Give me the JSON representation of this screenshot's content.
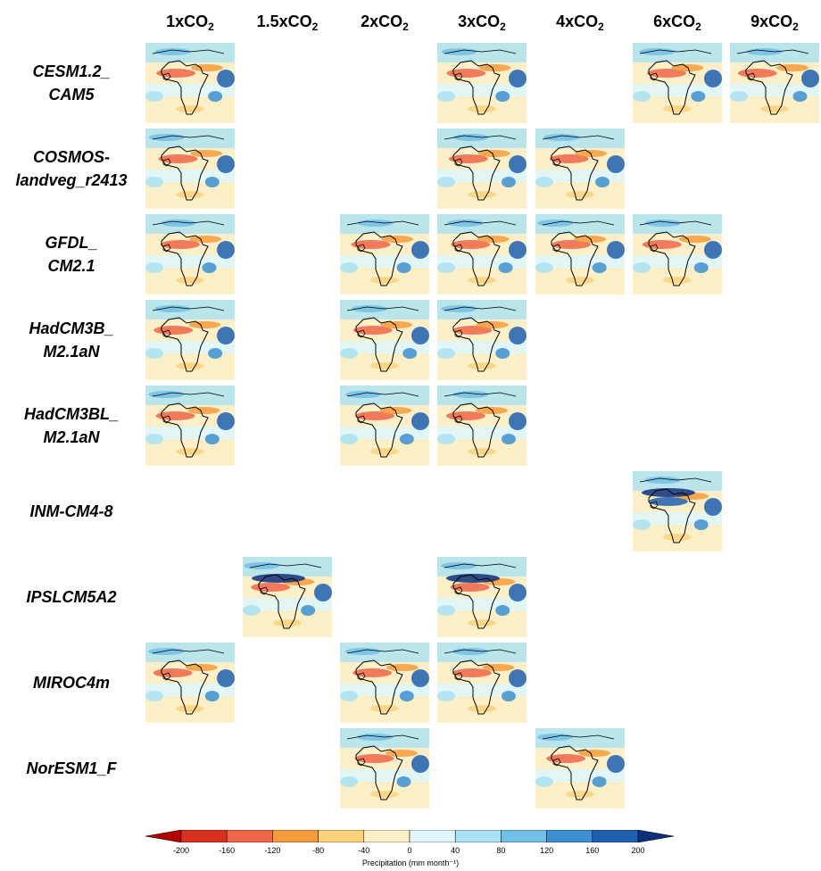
{
  "columns": [
    {
      "prefix": "1xCO",
      "sub": "2"
    },
    {
      "prefix": "1.5xCO",
      "sub": "2"
    },
    {
      "prefix": "2xCO",
      "sub": "2"
    },
    {
      "prefix": "3xCO",
      "sub": "2"
    },
    {
      "prefix": "4xCO",
      "sub": "2"
    },
    {
      "prefix": "6xCO",
      "sub": "2"
    },
    {
      "prefix": "9xCO",
      "sub": "2"
    }
  ],
  "models": [
    {
      "line1": "CESM1.2_",
      "line2": "CAM5",
      "panels": [
        0,
        3,
        5,
        6
      ]
    },
    {
      "line1": "COSMOS-",
      "line2": "landveg_r2413",
      "panels": [
        0,
        3,
        4
      ]
    },
    {
      "line1": "GFDL_",
      "line2": "CM2.1",
      "panels": [
        0,
        2,
        3,
        4,
        5
      ]
    },
    {
      "line1": "HadCM3B_",
      "line2": "M2.1aN",
      "panels": [
        0,
        2,
        3
      ]
    },
    {
      "line1": "HadCM3BL_",
      "line2": "M2.1aN",
      "panels": [
        0,
        2,
        3
      ]
    },
    {
      "line1": "INM-CM4-8",
      "line2": "",
      "panels": [
        5
      ]
    },
    {
      "line1": "IPSLCM5A2",
      "line2": "",
      "panels": [
        1,
        3
      ]
    },
    {
      "line1": "MIROC4m",
      "line2": "",
      "panels": [
        0,
        2,
        3
      ]
    },
    {
      "line1": "NorESM1_F",
      "line2": "",
      "panels": [
        2,
        4
      ]
    }
  ],
  "colorbar": {
    "title": "Precipitation (mm month⁻¹)",
    "ticks": [
      "-200",
      "-160",
      "-120",
      "-80",
      "-40",
      "0",
      "40",
      "80",
      "120",
      "160",
      "200"
    ],
    "colors": [
      "#b30000",
      "#d7301f",
      "#ef6548",
      "#f59c3c",
      "#fbd37a",
      "#fdf0c8",
      "#e0f6fb",
      "#a9e2f2",
      "#72c0e8",
      "#3d8fd1",
      "#1f5fb0",
      "#0c2f7a"
    ]
  }
}
